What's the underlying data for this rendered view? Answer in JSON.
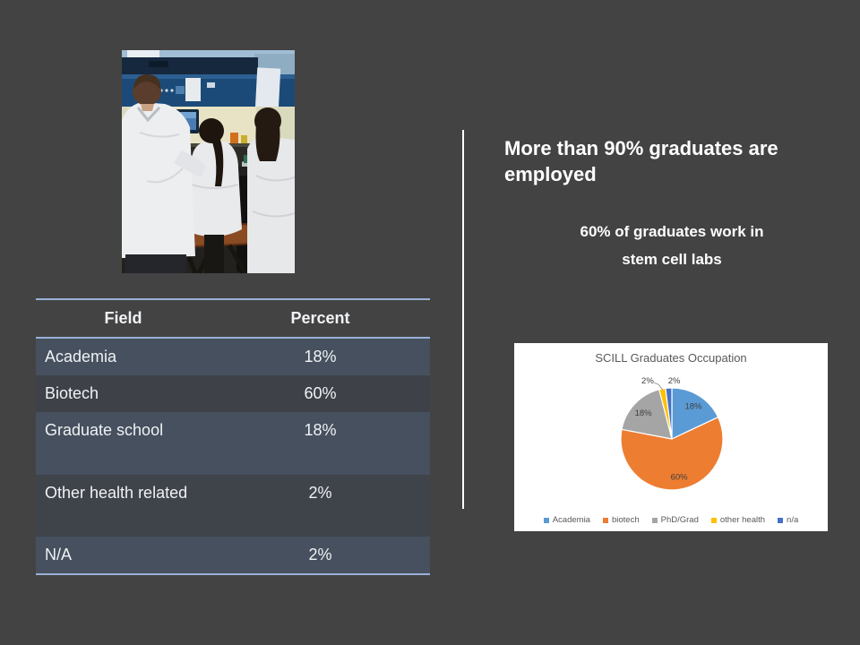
{
  "slide": {
    "background_color": "#434343",
    "divider_color": "#ffffff",
    "heading": "More than 90% graduates are employed",
    "subheading_lines": [
      "60% of graduates work in",
      "stem cell labs"
    ],
    "photo_alt": "Three researchers in white lab coats working at a biosafety cabinet in a stem cell lab"
  },
  "table": {
    "headers": [
      "Field",
      "Percent"
    ],
    "rows": [
      {
        "field": "Academia",
        "percent": "18%"
      },
      {
        "field": "Biotech",
        "percent": "60%"
      },
      {
        "field": "Graduate school",
        "percent": "18%"
      },
      {
        "field": "Other health related",
        "percent": "2%"
      },
      {
        "field": "N/A",
        "percent": "2%"
      }
    ],
    "accent_line_color": "#9ab1d6",
    "band_row_color": "#46505e",
    "alt_row_color": "#3e4248"
  },
  "chart_data": {
    "type": "pie",
    "title": "SCILL Graduates Occupation",
    "categories": [
      "Academia",
      "biotech",
      "PhD/Grad",
      "other health",
      "n/a"
    ],
    "values": [
      18,
      60,
      18,
      2,
      2
    ],
    "labels": [
      "18%",
      "60%",
      "18%",
      "2%",
      "2%"
    ],
    "colors": [
      "#5B9BD5",
      "#ED7D31",
      "#A5A5A5",
      "#FFC000",
      "#4472C4"
    ],
    "start_angle": 0,
    "direction": "clockwise",
    "legend_position": "bottom",
    "label_layout": [
      "inside",
      "inside",
      "inside",
      "outside-leader",
      "outside"
    ],
    "label_dx": [
      2,
      3,
      -2,
      -14,
      7
    ],
    "label_dy": [
      -2,
      2,
      -1,
      4,
      5
    ]
  }
}
